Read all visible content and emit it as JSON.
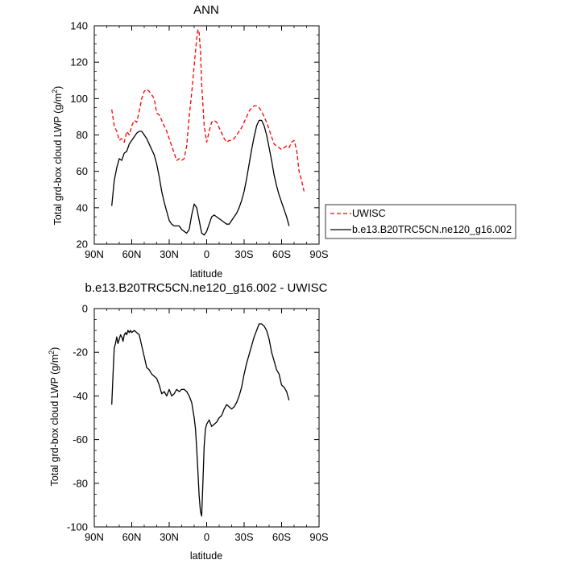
{
  "chart_data": [
    {
      "type": "line",
      "title": "ANN",
      "xlabel": "latitude",
      "ylabel": "Total grd-box cloud LWP (g/m",
      "ylabel_sup": "2",
      "ylabel_close": ")",
      "xlim": [
        90,
        -90
      ],
      "ylim": [
        20,
        140
      ],
      "xticks": [
        90,
        60,
        30,
        0,
        -30,
        -60,
        -90
      ],
      "xtick_labels": [
        "90N",
        "60N",
        "30N",
        "0",
        "30S",
        "60S",
        "90S"
      ],
      "yticks": [
        20,
        40,
        60,
        80,
        100,
        120,
        140
      ],
      "ytick_labels": [
        "20",
        "40",
        "60",
        "80",
        "100",
        "120",
        "140"
      ],
      "legend_position": "right",
      "series": [
        {
          "name": "UWISC",
          "color": "#ff0000",
          "dash": "dashed",
          "x": [
            76,
            74,
            72,
            70,
            68,
            66,
            64,
            62,
            60,
            58,
            56,
            54,
            52,
            50,
            48,
            46,
            44,
            42,
            40,
            38,
            36,
            34,
            32,
            30,
            28,
            26,
            24,
            22,
            20,
            18,
            16,
            14,
            12,
            10,
            8,
            7,
            6,
            5,
            4,
            2,
            0,
            -2,
            -4,
            -6,
            -8,
            -10,
            -12,
            -14,
            -16,
            -18,
            -20,
            -22,
            -24,
            -26,
            -28,
            -30,
            -32,
            -34,
            -36,
            -38,
            -40,
            -42,
            -44,
            -46,
            -48,
            -50,
            -52,
            -54,
            -56,
            -58,
            -60,
            -62,
            -64,
            -66,
            -68,
            -70,
            -72,
            -74,
            -76,
            -78
          ],
          "y": [
            94,
            85,
            82,
            77,
            78,
            76,
            82,
            80,
            85,
            88,
            87,
            93,
            100,
            104,
            105,
            104,
            102,
            100,
            92,
            91,
            88,
            85,
            82,
            78,
            74,
            70,
            66,
            67,
            66,
            67,
            74,
            90,
            103,
            118,
            133,
            138,
            136,
            126,
            108,
            85,
            76,
            82,
            87,
            88,
            87,
            84,
            81,
            78,
            76,
            77,
            77,
            78,
            80,
            82,
            84,
            87,
            90,
            93,
            95,
            96,
            96,
            95,
            93,
            90,
            87,
            83,
            79,
            75,
            74,
            73,
            72,
            73,
            74,
            73,
            76,
            77,
            72,
            60,
            55,
            49
          ]
        },
        {
          "name": "b.e13.B20TRC5CN.ne120_g16.002",
          "color": "#000000",
          "dash": "solid",
          "x": [
            76,
            74,
            72,
            70,
            68,
            66,
            64,
            62,
            60,
            58,
            56,
            54,
            52,
            50,
            48,
            46,
            44,
            42,
            40,
            38,
            36,
            34,
            32,
            30,
            28,
            26,
            24,
            22,
            20,
            18,
            16,
            14,
            12,
            10,
            8,
            6,
            4,
            2,
            0,
            -2,
            -4,
            -6,
            -8,
            -10,
            -12,
            -14,
            -16,
            -18,
            -20,
            -22,
            -24,
            -26,
            -28,
            -30,
            -32,
            -34,
            -36,
            -38,
            -40,
            -42,
            -44,
            -46,
            -48,
            -50,
            -52,
            -54,
            -56,
            -58,
            -60,
            -62,
            -64,
            -66
          ],
          "y": [
            41,
            55,
            62,
            67,
            66,
            70,
            71,
            75,
            77,
            79,
            81,
            82,
            82,
            80,
            78,
            75,
            72,
            69,
            64,
            57,
            49,
            43,
            38,
            33,
            31,
            30,
            30,
            30,
            28,
            27,
            26,
            28,
            36,
            42,
            40,
            33,
            26,
            25,
            27,
            31,
            35,
            36,
            35,
            34,
            33,
            32,
            31,
            31,
            33,
            35,
            37,
            40,
            44,
            49,
            56,
            64,
            72,
            79,
            85,
            88,
            88,
            85,
            80,
            73,
            66,
            58,
            52,
            47,
            43,
            39,
            35,
            30
          ]
        }
      ]
    },
    {
      "type": "line",
      "title": "b.e13.B20TRC5CN.ne120_g16.002 - UWISC",
      "xlabel": "latitude",
      "ylabel": "Total grd-box cloud LWP (g/m",
      "ylabel_sup": "2",
      "ylabel_close": ")",
      "xlim": [
        90,
        -90
      ],
      "ylim": [
        -100,
        0
      ],
      "xticks": [
        90,
        60,
        30,
        0,
        -30,
        -60,
        -90
      ],
      "xtick_labels": [
        "90N",
        "60N",
        "30N",
        "0",
        "30S",
        "60S",
        "90S"
      ],
      "yticks": [
        -100,
        -80,
        -60,
        -40,
        -20,
        0
      ],
      "ytick_labels": [
        "-100",
        "-80",
        "-60",
        "-40",
        "-20",
        "0"
      ],
      "series": [
        {
          "color": "#000000",
          "dash": "solid",
          "x": [
            76,
            75,
            74,
            73,
            72,
            71,
            70,
            69,
            68,
            67,
            66,
            65,
            64,
            63,
            62,
            61,
            60,
            58,
            56,
            54,
            52,
            50,
            48,
            46,
            44,
            42,
            40,
            38,
            36,
            34,
            32,
            30,
            28,
            26,
            24,
            22,
            20,
            18,
            16,
            14,
            12,
            10,
            9,
            8,
            7,
            6,
            5,
            4,
            3,
            2,
            1,
            0,
            -2,
            -4,
            -6,
            -8,
            -10,
            -12,
            -14,
            -16,
            -18,
            -20,
            -22,
            -24,
            -26,
            -28,
            -30,
            -32,
            -34,
            -36,
            -38,
            -40,
            -42,
            -44,
            -46,
            -48,
            -50,
            -52,
            -54,
            -56,
            -58,
            -60,
            -62,
            -64,
            -66
          ],
          "y": [
            -44,
            -30,
            -18,
            -16,
            -13,
            -16,
            -14,
            -12,
            -13,
            -15,
            -12,
            -11,
            -12,
            -10,
            -11,
            -10,
            -11,
            -10,
            -11,
            -12,
            -17,
            -22,
            -27,
            -28,
            -30,
            -31,
            -32,
            -35,
            -39,
            -38,
            -40,
            -37,
            -40,
            -39,
            -37,
            -38,
            -37,
            -37,
            -38,
            -40,
            -43,
            -50,
            -55,
            -64,
            -75,
            -86,
            -93,
            -95,
            -80,
            -63,
            -55,
            -53,
            -51,
            -54,
            -53,
            -52,
            -50,
            -49,
            -46,
            -44,
            -45,
            -46,
            -45,
            -43,
            -40,
            -36,
            -30,
            -25,
            -21,
            -17,
            -13,
            -10,
            -7,
            -7,
            -8,
            -10,
            -14,
            -20,
            -24,
            -28,
            -30,
            -35,
            -36,
            -38,
            -42
          ]
        }
      ]
    }
  ]
}
